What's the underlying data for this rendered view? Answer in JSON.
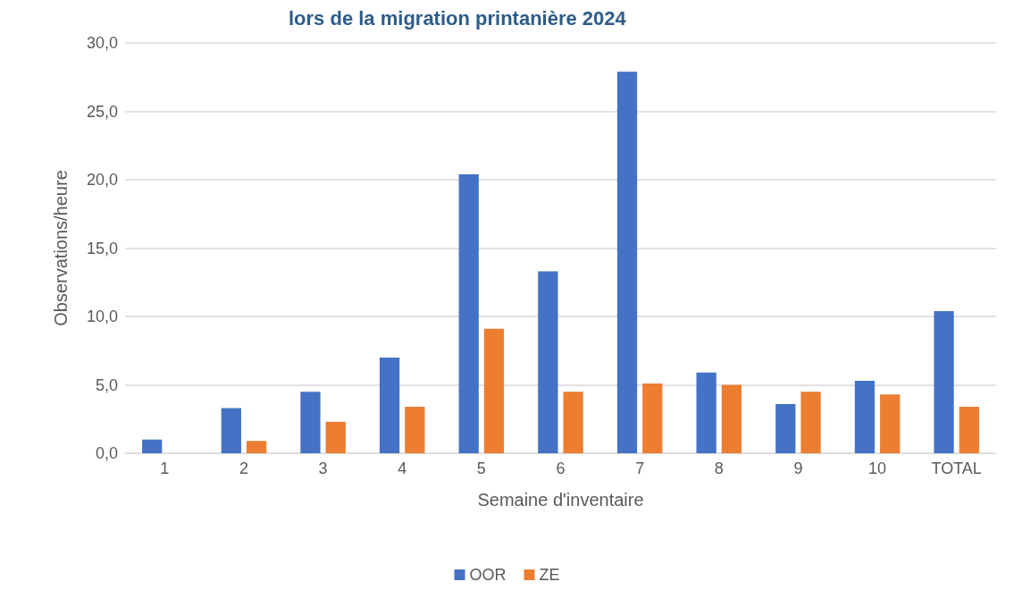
{
  "chart_data": {
    "type": "bar",
    "title": "lors de la migration printanière 2024",
    "xlabel": "Semaine d'inventaire",
    "ylabel": "Observations/heure",
    "categories": [
      "1",
      "2",
      "3",
      "4",
      "5",
      "6",
      "7",
      "8",
      "9",
      "10",
      "TOTAL"
    ],
    "series": [
      {
        "name": "OOR",
        "color": "#4472c4",
        "values": [
          1.0,
          3.3,
          4.5,
          7.0,
          20.4,
          13.3,
          27.9,
          5.9,
          3.6,
          5.3,
          10.4
        ]
      },
      {
        "name": "ZE",
        "color": "#ed7d31",
        "values": [
          0,
          0.9,
          2.3,
          3.4,
          9.1,
          4.5,
          5.1,
          5.0,
          4.5,
          4.3,
          3.4
        ]
      }
    ],
    "ylim": [
      0,
      30
    ],
    "yticks": [
      {
        "value": 0,
        "label": "0,0"
      },
      {
        "value": 5,
        "label": "5,0"
      },
      {
        "value": 10,
        "label": "10,0"
      },
      {
        "value": 15,
        "label": "15,0"
      },
      {
        "value": 20,
        "label": "20,0"
      },
      {
        "value": 25,
        "label": "25,0"
      },
      {
        "value": 30,
        "label": "30,0"
      }
    ],
    "grid": "y",
    "legend": "bottom"
  }
}
